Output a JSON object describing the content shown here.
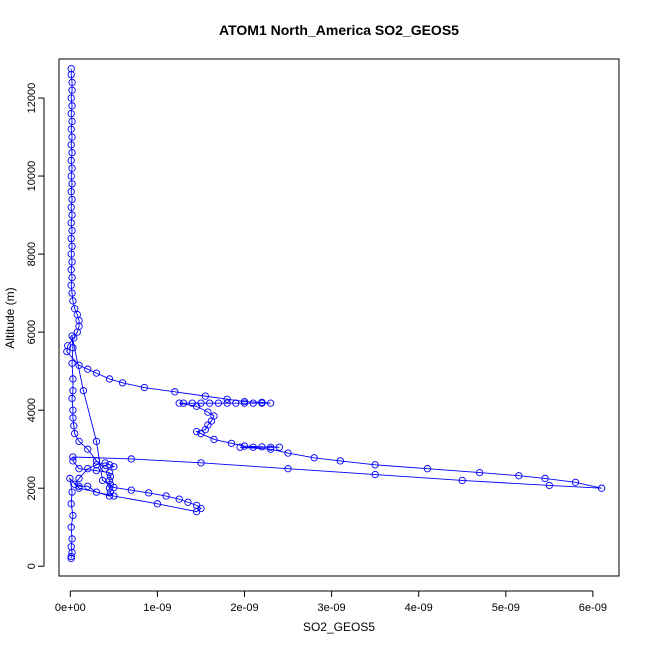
{
  "chart_data": {
    "type": "scatter",
    "title": "ATOM1 North_America SO2_GEOS5",
    "xlabel": "SO2_GEOS5",
    "ylabel": "Altitude (m)",
    "xlim": [
      -1.3e-10,
      6.3e-09
    ],
    "ylim": [
      -250,
      13000
    ],
    "x_ticks": [
      0,
      1e-09,
      2e-09,
      3e-09,
      4e-09,
      5e-09,
      6e-09
    ],
    "x_tick_labels": [
      "0e+00",
      "1e-09",
      "2e-09",
      "3e-09",
      "4e-09",
      "5e-09",
      "6e-09"
    ],
    "y_ticks": [
      0,
      2000,
      4000,
      6000,
      8000,
      10000,
      12000
    ],
    "y_tick_labels": [
      "0",
      "2000",
      "4000",
      "6000",
      "8000",
      "10000",
      "12000"
    ],
    "grid": false,
    "legend": "none",
    "colors": {
      "series": "#0000ff",
      "axes": "#000000"
    },
    "series": [
      {
        "marker": "open-circle",
        "line": true,
        "points": [
          [
            1e-11,
            12750
          ],
          [
            1e-11,
            12600
          ],
          [
            2e-11,
            12400
          ],
          [
            2e-11,
            12200
          ],
          [
            1e-11,
            12000
          ],
          [
            2e-11,
            11800
          ],
          [
            1e-11,
            11600
          ],
          [
            2e-11,
            11400
          ],
          [
            1e-11,
            11200
          ],
          [
            2e-11,
            11000
          ],
          [
            1e-11,
            10800
          ],
          [
            2e-11,
            10600
          ],
          [
            1e-11,
            10400
          ],
          [
            2e-11,
            10200
          ],
          [
            1e-11,
            10000
          ],
          [
            2e-11,
            9800
          ],
          [
            1e-11,
            9600
          ],
          [
            2e-11,
            9400
          ],
          [
            1e-11,
            9200
          ],
          [
            2e-11,
            9000
          ],
          [
            1e-11,
            8800
          ],
          [
            2e-11,
            8600
          ],
          [
            1e-11,
            8400
          ],
          [
            2e-11,
            8200
          ],
          [
            1e-11,
            8000
          ],
          [
            2e-11,
            7800
          ],
          [
            1e-11,
            7600
          ],
          [
            2e-11,
            7400
          ],
          [
            1e-11,
            7200
          ],
          [
            2e-11,
            7000
          ],
          [
            3e-11,
            6800
          ],
          [
            5e-11,
            6600
          ],
          [
            8e-11,
            6450
          ],
          [
            1e-10,
            6300
          ],
          [
            1e-10,
            6150
          ],
          [
            8e-11,
            6000
          ],
          [
            4e-11,
            5850
          ],
          [
            -3e-11,
            5650
          ],
          [
            -4e-11,
            5500
          ],
          [
            1e-10,
            5150
          ],
          [
            2e-10,
            5050
          ],
          [
            3e-10,
            4950
          ],
          [
            4.5e-10,
            4800
          ],
          [
            6e-10,
            4700
          ],
          [
            8.5e-10,
            4580
          ],
          [
            1.2e-09,
            4470
          ],
          [
            1.55e-09,
            4360
          ],
          [
            1.8e-09,
            4280
          ],
          [
            2e-09,
            4220
          ],
          [
            2.2e-09,
            4200
          ],
          [
            2.3e-09,
            4180
          ],
          [
            2.2e-09,
            4180
          ],
          [
            2.1e-09,
            4180
          ],
          [
            2e-09,
            4180
          ],
          [
            1.9e-09,
            4180
          ],
          [
            1.8e-09,
            4180
          ],
          [
            1.7e-09,
            4180
          ],
          [
            1.6e-09,
            4180
          ],
          [
            1.5e-09,
            4180
          ],
          [
            1.4e-09,
            4180
          ],
          [
            1.3e-09,
            4180
          ],
          [
            1.25e-09,
            4180
          ],
          [
            1.45e-09,
            4100
          ],
          [
            1.58e-09,
            3950
          ],
          [
            1.65e-09,
            3850
          ],
          [
            1.62e-09,
            3720
          ],
          [
            1.58e-09,
            3620
          ],
          [
            1.55e-09,
            3500
          ],
          [
            1.45e-09,
            3450
          ],
          [
            1.5e-09,
            3400
          ],
          [
            1.65e-09,
            3250
          ],
          [
            1.85e-09,
            3150
          ],
          [
            2e-09,
            3080
          ],
          [
            2.2e-09,
            3060
          ],
          [
            2.4e-09,
            3050
          ],
          [
            2.3e-09,
            3050
          ],
          [
            2.1e-09,
            3050
          ],
          [
            1.95e-09,
            3050
          ],
          [
            2.3e-09,
            3000
          ],
          [
            2.5e-09,
            2900
          ],
          [
            2.8e-09,
            2780
          ],
          [
            3.1e-09,
            2700
          ],
          [
            3.5e-09,
            2600
          ],
          [
            4.1e-09,
            2500
          ],
          [
            4.7e-09,
            2400
          ],
          [
            5.15e-09,
            2320
          ],
          [
            5.45e-09,
            2250
          ],
          [
            5.8e-09,
            2150
          ],
          [
            6.1e-09,
            2000
          ],
          [
            5.5e-09,
            2070
          ],
          [
            4.5e-09,
            2200
          ],
          [
            3.5e-09,
            2350
          ],
          [
            2.5e-09,
            2500
          ],
          [
            1.5e-09,
            2650
          ],
          [
            7e-10,
            2750
          ],
          [
            3e-11,
            2800
          ],
          [
            3e-11,
            2700
          ],
          [
            1e-10,
            2500
          ],
          [
            3e-10,
            2450
          ],
          [
            4.5e-10,
            2400
          ],
          [
            4.6e-10,
            2300
          ],
          [
            4.5e-10,
            2200
          ],
          [
            4.6e-10,
            2100
          ],
          [
            4.5e-10,
            2000
          ],
          [
            4.6e-10,
            1900
          ],
          [
            4.5e-10,
            1800
          ],
          [
            3e-10,
            1900
          ],
          [
            2e-10,
            2050
          ],
          [
            1e-10,
            2050
          ],
          [
            5e-11,
            2100
          ],
          [
            1e-10,
            2250
          ],
          [
            2e-10,
            2500
          ],
          [
            3e-10,
            2600
          ],
          [
            4e-10,
            2650
          ],
          [
            4.5e-10,
            2600
          ],
          [
            5e-10,
            2550
          ],
          [
            4e-10,
            2500
          ],
          [
            3e-10,
            2700
          ],
          [
            2e-10,
            3000
          ],
          [
            1e-10,
            3200
          ],
          [
            5e-11,
            3400
          ],
          [
            4e-11,
            3600
          ],
          [
            3e-11,
            3800
          ],
          [
            3e-11,
            4000
          ],
          [
            2e-11,
            4300
          ],
          [
            3e-11,
            4500
          ],
          [
            3e-11,
            4800
          ],
          [
            2e-11,
            5200
          ],
          [
            3e-11,
            5600
          ],
          [
            2e-11,
            5900
          ],
          [
            1.5e-10,
            4500
          ],
          [
            3e-10,
            3200
          ],
          [
            3.7e-10,
            2200
          ],
          [
            5e-10,
            2020
          ],
          [
            7e-10,
            1950
          ],
          [
            9e-10,
            1880
          ],
          [
            1.1e-09,
            1800
          ],
          [
            1.25e-09,
            1720
          ],
          [
            1.35e-09,
            1640
          ],
          [
            1.45e-09,
            1560
          ],
          [
            1.5e-09,
            1480
          ],
          [
            1.45e-09,
            1400
          ],
          [
            1e-09,
            1600
          ],
          [
            5e-10,
            1800
          ],
          [
            1e-10,
            2000
          ],
          [
            -5e-12,
            2250
          ],
          [
            2e-11,
            1900
          ],
          [
            1e-11,
            1600
          ],
          [
            3e-11,
            1300
          ],
          [
            1e-11,
            1000
          ],
          [
            2e-11,
            700
          ],
          [
            1e-11,
            500
          ],
          [
            2e-11,
            350
          ],
          [
            1e-11,
            250
          ],
          [
            1e-11,
            200
          ]
        ]
      }
    ]
  }
}
